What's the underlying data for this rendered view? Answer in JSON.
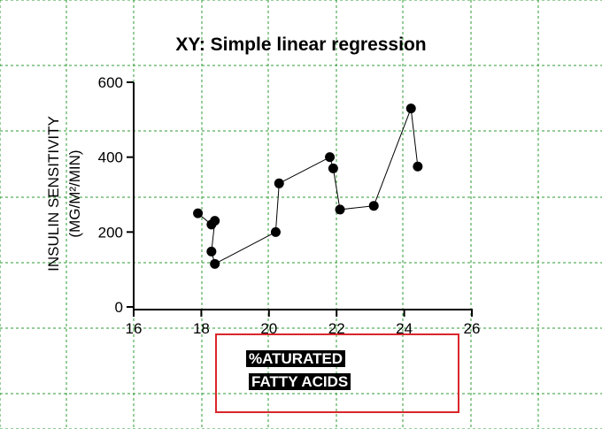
{
  "chart_data": {
    "type": "scatter",
    "title": "XY: Simple linear regression",
    "ylabel_line1": "INSULIN SENSITIVITY",
    "ylabel_line2": "(MG/M²/MIN)",
    "xlabel_line1": "%ATURATED",
    "xlabel_line2": "FATTY ACIDS",
    "xlim": [
      16,
      26
    ],
    "ylim": [
      0,
      600
    ],
    "xticks": [
      16,
      18,
      20,
      22,
      24,
      26
    ],
    "yticks": [
      0,
      200,
      400,
      600
    ],
    "grid": true,
    "connected_points": true,
    "points": [
      {
        "x": 17.9,
        "y": 250
      },
      {
        "x": 18.3,
        "y": 220
      },
      {
        "x": 18.4,
        "y": 230
      },
      {
        "x": 18.3,
        "y": 148
      },
      {
        "x": 18.4,
        "y": 115
      },
      {
        "x": 20.2,
        "y": 200
      },
      {
        "x": 20.3,
        "y": 330
      },
      {
        "x": 21.8,
        "y": 400
      },
      {
        "x": 21.9,
        "y": 370
      },
      {
        "x": 22.1,
        "y": 260
      },
      {
        "x": 23.1,
        "y": 270
      },
      {
        "x": 24.2,
        "y": 530
      },
      {
        "x": 24.4,
        "y": 375
      }
    ],
    "colors": {
      "points": "#000000",
      "grid": "#2e9b33",
      "highlight_box": "#d9262b"
    }
  }
}
